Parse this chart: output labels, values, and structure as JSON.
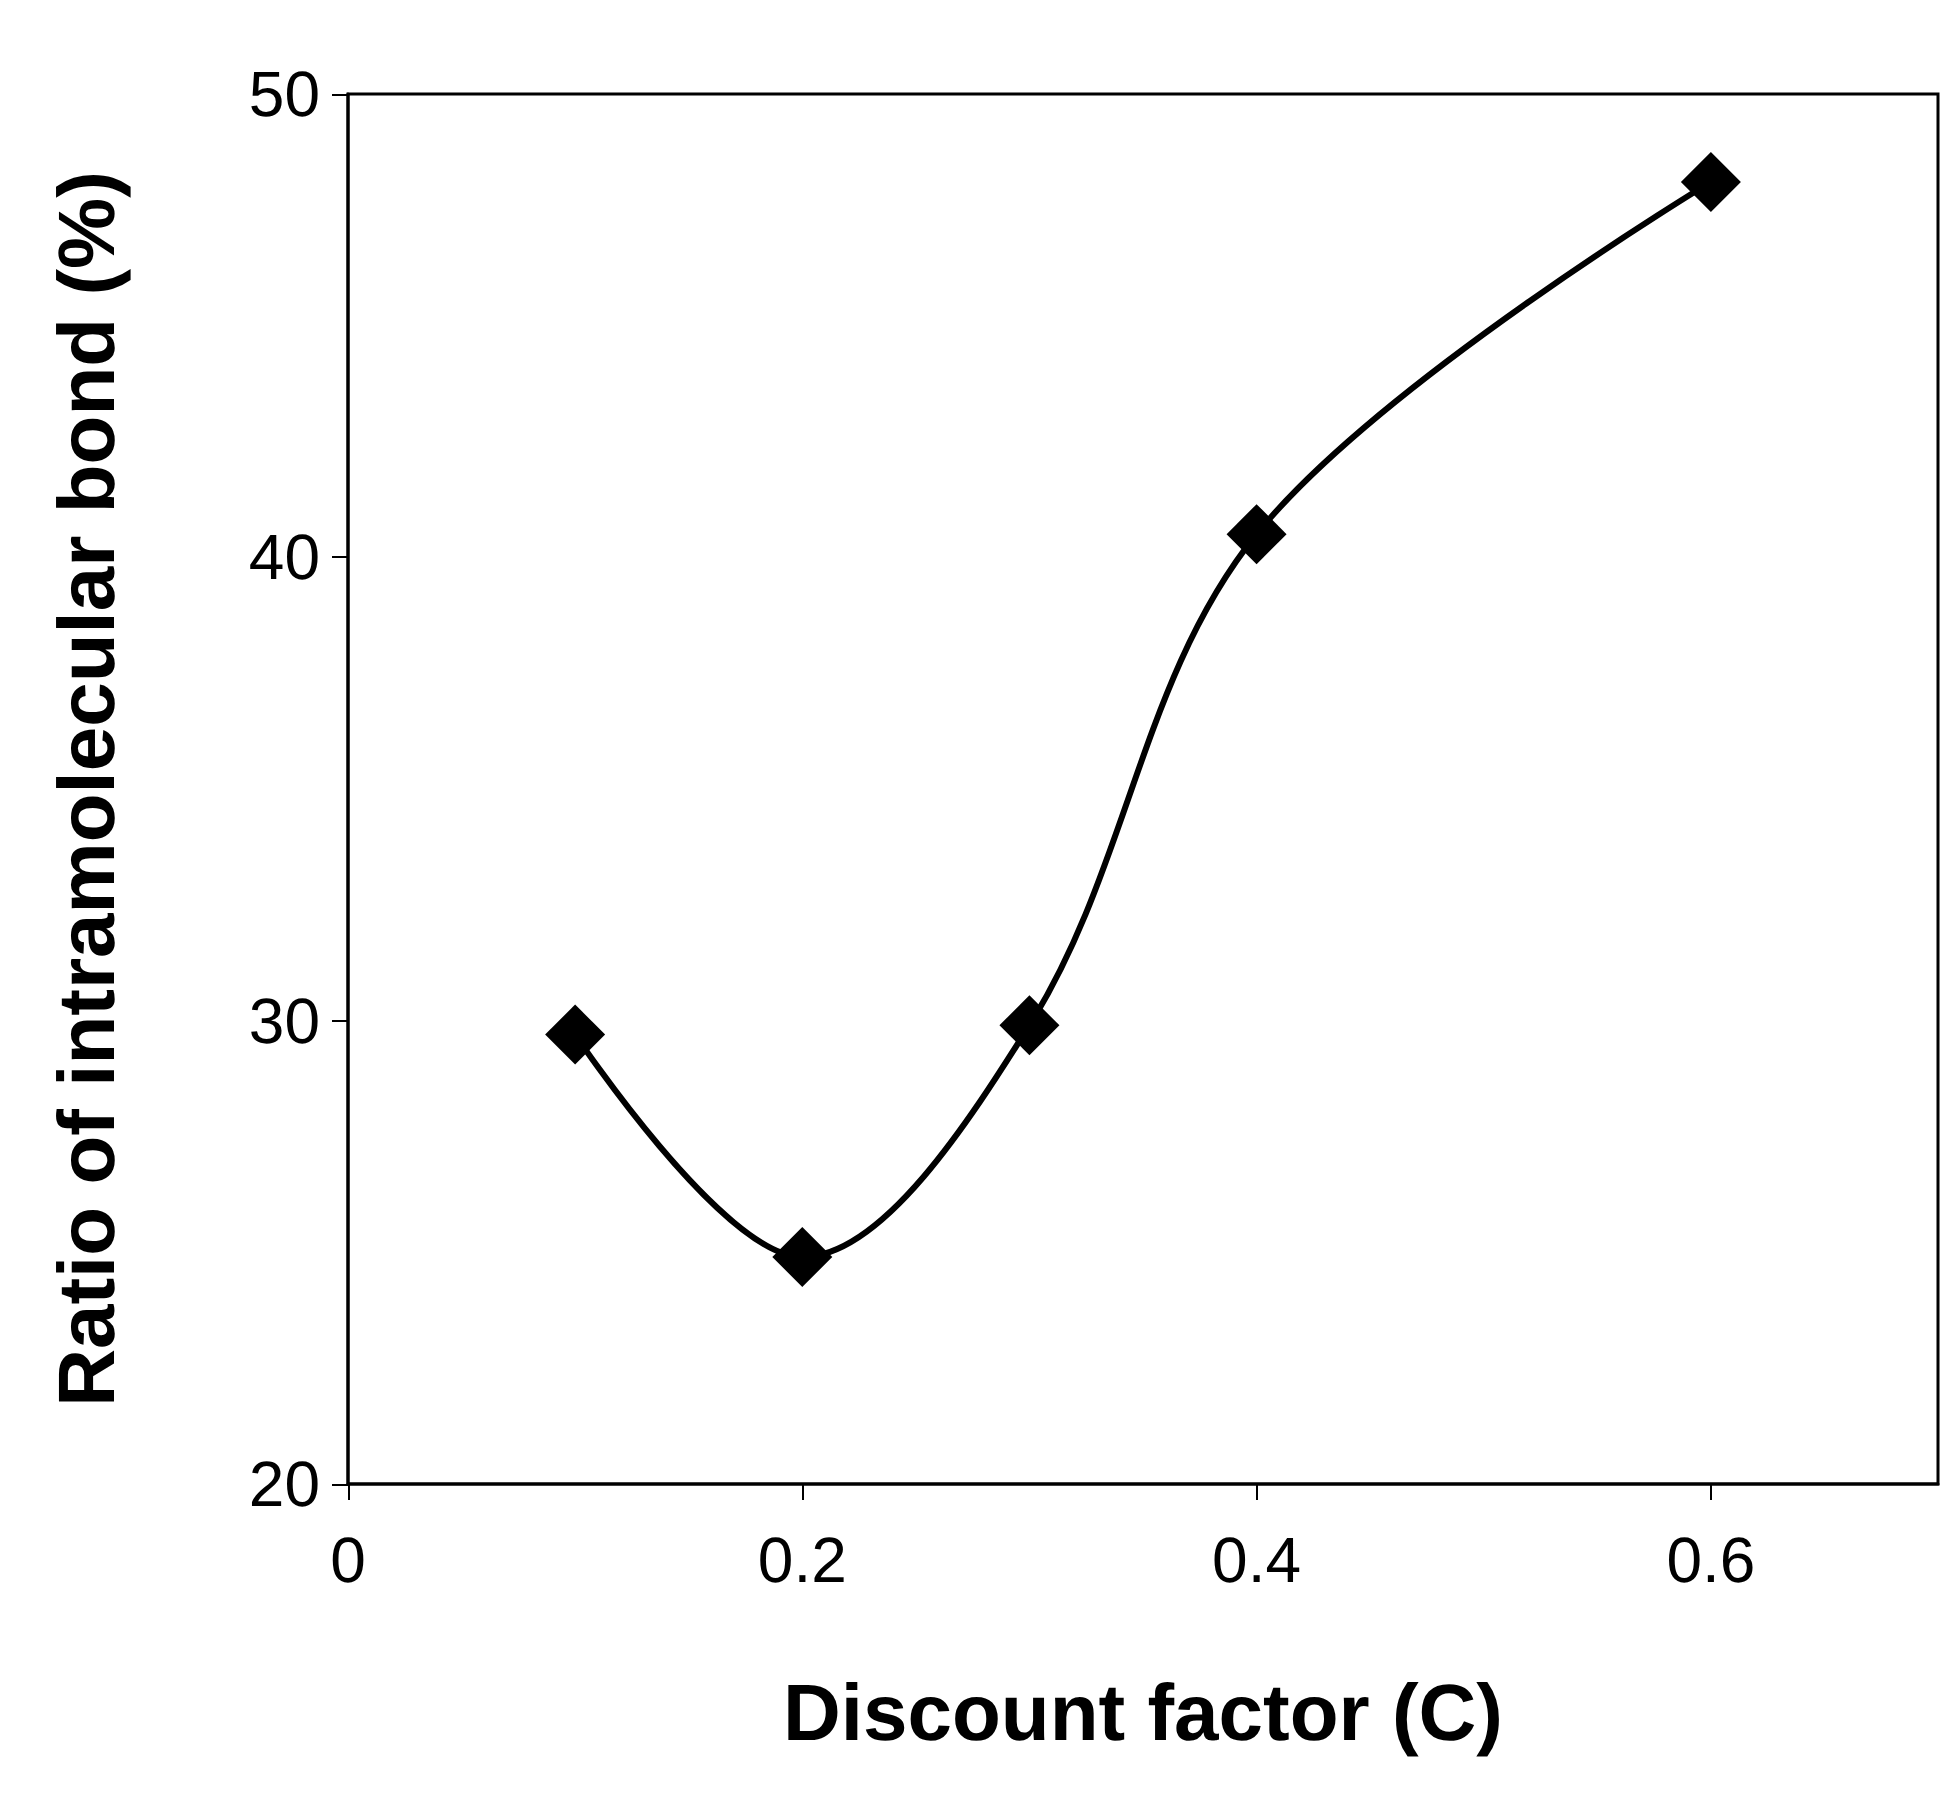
{
  "chart_data": {
    "type": "line",
    "xlabel": "Discount factor (C)",
    "ylabel": "Ratio of intramolecular bond (%)",
    "x": [
      0.1,
      0.2,
      0.3,
      0.4,
      0.6
    ],
    "series": [
      {
        "color": "#000000",
        "values": [
          29.7,
          24.9,
          29.9,
          40.5,
          48.1
        ]
      }
    ],
    "xlim": [
      0,
      0.7
    ],
    "xticks": [
      0,
      0.2,
      0.4,
      0.6
    ],
    "ylim": [
      20,
      50
    ],
    "yticks": [
      20,
      30,
      40,
      50
    ],
    "marker": "diamond",
    "line_style": "solid",
    "grid": false
  }
}
